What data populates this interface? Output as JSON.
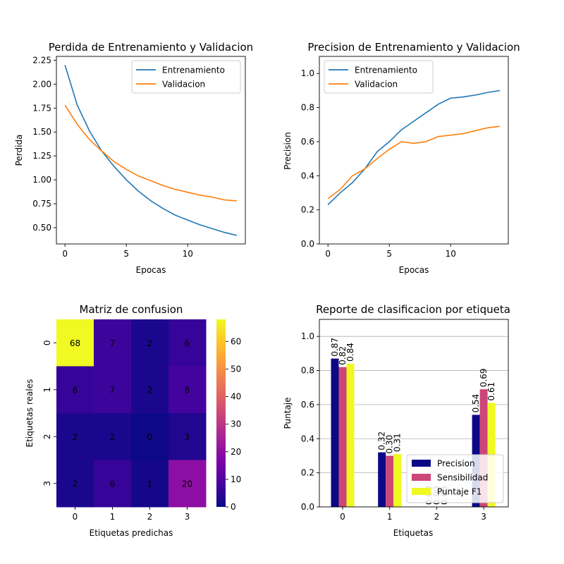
{
  "chart_data": [
    {
      "type": "line",
      "title": "Perdida de Entrenamiento y Validacion",
      "xlabel": "Epocas",
      "ylabel": "Perdida",
      "x": [
        0,
        1,
        2,
        3,
        4,
        5,
        6,
        7,
        8,
        9,
        10,
        11,
        12,
        13,
        14
      ],
      "series": [
        {
          "name": "Entrenamiento",
          "color": "#1f77b4",
          "values": [
            2.2,
            1.78,
            1.51,
            1.3,
            1.14,
            1.0,
            0.88,
            0.78,
            0.7,
            0.63,
            0.58,
            0.53,
            0.49,
            0.45,
            0.42
          ]
        },
        {
          "name": "Validacion",
          "color": "#ff7f0e",
          "values": [
            1.78,
            1.58,
            1.42,
            1.3,
            1.19,
            1.11,
            1.04,
            0.99,
            0.94,
            0.9,
            0.87,
            0.84,
            0.82,
            0.79,
            0.78
          ]
        }
      ],
      "xlim": [
        -0.7,
        14.7
      ],
      "ylim": [
        0.33,
        2.29
      ],
      "xticks": [
        0,
        5,
        10
      ],
      "yticks": [
        0.5,
        0.75,
        1.0,
        1.25,
        1.5,
        1.75,
        2.0,
        2.25
      ],
      "ytick_labels": [
        "0.50",
        "0.75",
        "1.00",
        "1.25",
        "1.50",
        "1.75",
        "2.00",
        "2.25"
      ],
      "legend": "top-right"
    },
    {
      "type": "line",
      "title": "Precision de Entrenamiento y Validacion",
      "xlabel": "Epocas",
      "ylabel": "Precision",
      "x": [
        0,
        1,
        2,
        3,
        4,
        5,
        6,
        7,
        8,
        9,
        10,
        11,
        12,
        13,
        14
      ],
      "series": [
        {
          "name": "Entrenamiento",
          "color": "#1f77b4",
          "values": [
            0.23,
            0.3,
            0.36,
            0.44,
            0.54,
            0.6,
            0.67,
            0.72,
            0.77,
            0.82,
            0.855,
            0.862,
            0.873,
            0.888,
            0.9
          ]
        },
        {
          "name": "Validacion",
          "color": "#ff7f0e",
          "values": [
            0.265,
            0.32,
            0.4,
            0.44,
            0.5,
            0.555,
            0.6,
            0.59,
            0.6,
            0.63,
            0.638,
            0.647,
            0.664,
            0.681,
            0.69
          ]
        }
      ],
      "xlim": [
        -0.7,
        14.7
      ],
      "ylim": [
        0.0,
        1.1
      ],
      "xticks": [
        0,
        5,
        10
      ],
      "yticks": [
        0.0,
        0.2,
        0.4,
        0.6,
        0.8,
        1.0
      ],
      "ytick_labels": [
        "0.0",
        "0.2",
        "0.4",
        "0.6",
        "0.8",
        "1.0"
      ],
      "legend": "top-left"
    },
    {
      "type": "heatmap",
      "title": "Matriz de confusion",
      "xlabel": "Etiquetas predichas",
      "ylabel": "Etiquetas reales",
      "xtick_labels": [
        "0",
        "1",
        "2",
        "3"
      ],
      "ytick_labels": [
        "0",
        "1",
        "2",
        "3"
      ],
      "matrix": [
        [
          68,
          7,
          2,
          6
        ],
        [
          6,
          7,
          2,
          8
        ],
        [
          2,
          2,
          0,
          3
        ],
        [
          2,
          6,
          1,
          20
        ]
      ],
      "colormap": "plasma",
      "vmin": 0,
      "vmax": 68,
      "colorbar_ticks": [
        0,
        10,
        20,
        30,
        40,
        50,
        60
      ]
    },
    {
      "type": "bar",
      "title": "Reporte de clasificacion por etiqueta",
      "xlabel": "Etiquetas",
      "ylabel": "Puntaje",
      "categories": [
        "0",
        "1",
        "2",
        "3"
      ],
      "series": [
        {
          "name": "Precision",
          "color": "#0d0887",
          "values": [
            0.87,
            0.32,
            0.0,
            0.54
          ],
          "labels": [
            "0.87",
            "0.32",
            "0.00",
            "0.54"
          ]
        },
        {
          "name": "Sensibilidad",
          "color": "#cc4778",
          "values": [
            0.82,
            0.3,
            0.0,
            0.69
          ],
          "labels": [
            "0.82",
            "0.30",
            "0.00",
            "0.69"
          ]
        },
        {
          "name": "Puntaje F1",
          "color": "#f0f921",
          "values": [
            0.84,
            0.31,
            0.0,
            0.61
          ],
          "labels": [
            "0.84",
            "0.31",
            "0.00",
            "0.61"
          ]
        }
      ],
      "ylim": [
        0.0,
        1.1
      ],
      "yticks": [
        0.0,
        0.2,
        0.4,
        0.6,
        0.8,
        1.0
      ],
      "ytick_labels": [
        "0.0",
        "0.2",
        "0.4",
        "0.6",
        "0.8",
        "1.0"
      ],
      "grid": "y",
      "legend": "bottom-right"
    }
  ]
}
